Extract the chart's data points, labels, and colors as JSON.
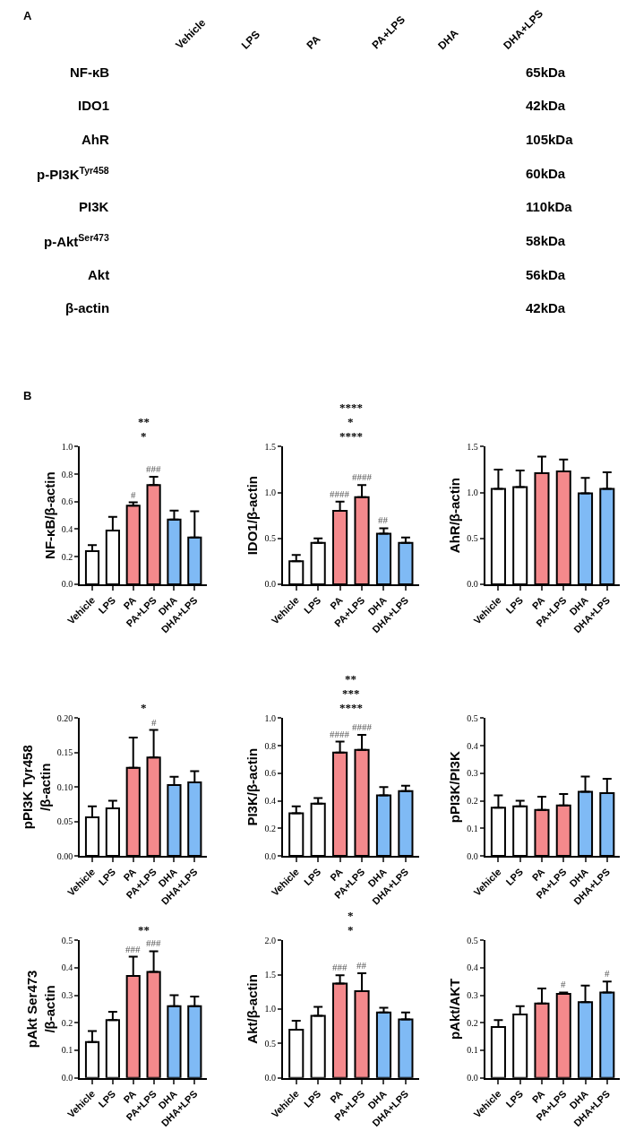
{
  "chart_data": [
    {
      "type": "other",
      "title": "A",
      "categories": [
        "Vehicle",
        "LPS",
        "PA",
        "PA+LPS",
        "DHA",
        "DHA+LPS"
      ],
      "y_categories": [
        "NF-κB",
        "IDO1",
        "AhR",
        "p-PI3K$^{Tyr458}$",
        "PI3K",
        "p-Akt$^{Ser473}$",
        "Akt",
        "β-actin"
      ],
      "y2_categories": [
        "65kDa",
        "42kDa",
        "105kDa",
        "60kDa",
        "110kDa",
        "58kDa",
        "56kDa",
        "42kDa"
      ]
    },
    {
      "type": "bar",
      "title": "B",
      "ylabel": "NF-κB/β-actin",
      "categories": [
        "Vehicle",
        "LPS",
        "PA",
        "PA+LPS",
        "DHA",
        "DHA+LPS"
      ],
      "colors": [
        "#ffffff",
        "#ffffff",
        "#f4898c",
        "#f4898c",
        "#7fbaf5",
        "#7fbaf5"
      ],
      "values": [
        0.24,
        0.39,
        0.57,
        0.72,
        0.47,
        0.34
      ],
      "errors": [
        [
          0.24,
          0.285
        ],
        [
          0.39,
          0.49
        ],
        [
          0.57,
          0.595
        ],
        [
          0.72,
          0.78
        ],
        [
          0.47,
          0.535
        ],
        [
          0.34,
          0.53
        ]
      ],
      "ylim": [
        0,
        1.0
      ],
      "yticks": [
        {
          "value": 0,
          "label": "0.0"
        },
        0.2,
        0.4,
        0.6,
        0.8,
        {
          "value": 1.0,
          "label": "1.0"
        }
      ],
      "grid": false,
      "annotations": [
        {
          "text": "#",
          "x": "PA",
          "y": 0.595
        },
        {
          "text": "###",
          "x": "PA+LPS",
          "y": 0.78
        },
        "*",
        "**"
      ]
    },
    {
      "type": "bar",
      "ylabel": "IDO1/β-actin",
      "categories": [
        "Vehicle",
        "LPS",
        "PA",
        "PA+LPS",
        "DHA",
        "DHA+LPS"
      ],
      "colors": [
        "#ffffff",
        "#ffffff",
        "#f4898c",
        "#f4898c",
        "#7fbaf5",
        "#7fbaf5"
      ],
      "values": [
        0.25,
        0.45,
        0.8,
        0.95,
        0.55,
        0.45
      ],
      "errors": [
        [
          0.25,
          0.32
        ],
        [
          0.45,
          0.5
        ],
        [
          0.8,
          0.9
        ],
        [
          0.95,
          1.08
        ],
        [
          0.55,
          0.61
        ],
        [
          0.45,
          0.51
        ]
      ],
      "ylim": [
        0,
        1.5
      ],
      "yticks": [
        {
          "value": 0,
          "label": "0.0"
        },
        0.5,
        {
          "value": 1.0,
          "label": "1.0"
        },
        1.5
      ],
      "grid": false,
      "annotations": [
        {
          "text": "####",
          "x": "PA",
          "y": 0.9
        },
        {
          "text": "####",
          "x": "PA+LPS",
          "y": 1.08
        },
        {
          "text": "##",
          "x": "DHA",
          "y": 0.61
        },
        "****",
        "*",
        "****"
      ]
    },
    {
      "type": "bar",
      "ylabel": "AhR/β-actin",
      "categories": [
        "Vehicle",
        "LPS",
        "PA",
        "PA+LPS",
        "DHA",
        "DHA+LPS"
      ],
      "colors": [
        "#ffffff",
        "#ffffff",
        "#f4898c",
        "#f4898c",
        "#7fbaf5",
        "#7fbaf5"
      ],
      "values": [
        1.04,
        1.06,
        1.21,
        1.23,
        0.99,
        1.04
      ],
      "errors": [
        [
          1.04,
          1.25
        ],
        [
          1.06,
          1.24
        ],
        [
          1.21,
          1.39
        ],
        [
          1.23,
          1.36
        ],
        [
          0.99,
          1.16
        ],
        [
          1.04,
          1.22
        ]
      ],
      "ylim": [
        0,
        1.5
      ],
      "yticks": [
        {
          "value": 0,
          "label": "0.0"
        },
        0.5,
        {
          "value": 1.0,
          "label": "1.0"
        },
        1.5
      ],
      "grid": false
    },
    {
      "type": "bar",
      "ylabel": "pPI3K Tyr458\n/β-actin",
      "categories": [
        "Vehicle",
        "LPS",
        "PA",
        "PA+LPS",
        "DHA",
        "DHA+LPS"
      ],
      "colors": [
        "#ffffff",
        "#ffffff",
        "#f4898c",
        "#f4898c",
        "#7fbaf5",
        "#7fbaf5"
      ],
      "values": [
        0.056,
        0.069,
        0.128,
        0.143,
        0.103,
        0.107
      ],
      "errors": [
        [
          0.056,
          0.072
        ],
        [
          0.069,
          0.08
        ],
        [
          0.128,
          0.172
        ],
        [
          0.143,
          0.183
        ],
        [
          0.103,
          0.115
        ],
        [
          0.107,
          0.123
        ]
      ],
      "ylim": [
        0,
        0.2
      ],
      "yticks": [
        {
          "value": 0,
          "label": "0.00"
        },
        0.05,
        {
          "value": 0.1,
          "label": "0.10"
        },
        0.15,
        {
          "value": 0.2,
          "label": "0.20"
        }
      ],
      "grid": false,
      "annotations": [
        {
          "text": "#",
          "x": "PA+LPS",
          "y": 0.183
        },
        "*"
      ]
    },
    {
      "type": "bar",
      "ylabel": "PI3K/β-actin",
      "categories": [
        "Vehicle",
        "LPS",
        "PA",
        "PA+LPS",
        "DHA",
        "DHA+LPS"
      ],
      "colors": [
        "#ffffff",
        "#ffffff",
        "#f4898c",
        "#f4898c",
        "#7fbaf5",
        "#7fbaf5"
      ],
      "values": [
        0.31,
        0.38,
        0.75,
        0.77,
        0.44,
        0.47
      ],
      "errors": [
        [
          0.31,
          0.36
        ],
        [
          0.38,
          0.42
        ],
        [
          0.75,
          0.83
        ],
        [
          0.77,
          0.88
        ],
        [
          0.44,
          0.5
        ],
        [
          0.47,
          0.51
        ]
      ],
      "ylim": [
        0,
        1.0
      ],
      "yticks": [
        {
          "value": 0,
          "label": "0.0"
        },
        0.2,
        0.4,
        0.6,
        0.8,
        {
          "value": 1.0,
          "label": "1.0"
        }
      ],
      "grid": false,
      "annotations": [
        {
          "text": "####",
          "x": "PA",
          "y": 0.83
        },
        {
          "text": "####",
          "x": "PA+LPS",
          "y": 0.88
        },
        "****",
        "***",
        "**"
      ]
    },
    {
      "type": "bar",
      "ylabel": "pPI3K/PI3K",
      "categories": [
        "Vehicle",
        "LPS",
        "PA",
        "PA+LPS",
        "DHA",
        "DHA+LPS"
      ],
      "colors": [
        "#ffffff",
        "#ffffff",
        "#f4898c",
        "#f4898c",
        "#7fbaf5",
        "#7fbaf5"
      ],
      "values": [
        0.175,
        0.18,
        0.167,
        0.183,
        0.233,
        0.228
      ],
      "errors": [
        [
          0.175,
          0.22
        ],
        [
          0.18,
          0.2
        ],
        [
          0.167,
          0.215
        ],
        [
          0.183,
          0.225
        ],
        [
          0.233,
          0.288
        ],
        [
          0.228,
          0.28
        ]
      ],
      "ylim": [
        0,
        0.5
      ],
      "yticks": [
        {
          "value": 0,
          "label": "0.0"
        },
        0.1,
        0.2,
        0.3,
        0.4,
        0.5
      ],
      "grid": false
    },
    {
      "type": "bar",
      "ylabel": "pAkt Ser473\n/β-actin",
      "categories": [
        "Vehicle",
        "LPS",
        "PA",
        "PA+LPS",
        "DHA",
        "DHA+LPS"
      ],
      "colors": [
        "#ffffff",
        "#ffffff",
        "#f4898c",
        "#f4898c",
        "#7fbaf5",
        "#7fbaf5"
      ],
      "values": [
        0.13,
        0.21,
        0.37,
        0.385,
        0.26,
        0.26
      ],
      "errors": [
        [
          0.13,
          0.17
        ],
        [
          0.21,
          0.24
        ],
        [
          0.37,
          0.44
        ],
        [
          0.385,
          0.46
        ],
        [
          0.26,
          0.3
        ],
        [
          0.26,
          0.295
        ]
      ],
      "ylim": [
        0,
        0.5
      ],
      "yticks": [
        {
          "value": 0,
          "label": "0.0"
        },
        0.1,
        0.2,
        0.3,
        0.4,
        0.5
      ],
      "grid": false,
      "annotations": [
        {
          "text": "###",
          "x": "PA",
          "y": 0.44
        },
        {
          "text": "###",
          "x": "PA+LPS",
          "y": 0.46
        },
        "**"
      ]
    },
    {
      "type": "bar",
      "ylabel": "Akt/β-actin",
      "categories": [
        "Vehicle",
        "LPS",
        "PA",
        "PA+LPS",
        "DHA",
        "DHA+LPS"
      ],
      "colors": [
        "#ffffff",
        "#ffffff",
        "#f4898c",
        "#f4898c",
        "#7fbaf5",
        "#7fbaf5"
      ],
      "values": [
        0.7,
        0.9,
        1.37,
        1.26,
        0.95,
        0.85
      ],
      "errors": [
        [
          0.7,
          0.83
        ],
        [
          0.9,
          1.03
        ],
        [
          1.37,
          1.49
        ],
        [
          1.26,
          1.52
        ],
        [
          0.95,
          1.02
        ],
        [
          0.85,
          0.95
        ]
      ],
      "ylim": [
        0,
        2.0
      ],
      "yticks": [
        {
          "value": 0,
          "label": "0.0"
        },
        0.5,
        {
          "value": 1.0,
          "label": "1.0"
        },
        1.5,
        {
          "value": 2.0,
          "label": "2.0"
        }
      ],
      "grid": false,
      "annotations": [
        {
          "text": "###",
          "x": "PA",
          "y": 1.49
        },
        {
          "text": "##",
          "x": "PA+LPS",
          "y": 1.52
        },
        "*",
        "*"
      ]
    },
    {
      "type": "bar",
      "ylabel": "pAkt/AKT",
      "categories": [
        "Vehicle",
        "LPS",
        "PA",
        "PA+LPS",
        "DHA",
        "DHA+LPS"
      ],
      "colors": [
        "#ffffff",
        "#ffffff",
        "#f4898c",
        "#f4898c",
        "#7fbaf5",
        "#7fbaf5"
      ],
      "values": [
        0.185,
        0.23,
        0.27,
        0.305,
        0.275,
        0.31
      ],
      "errors": [
        [
          0.185,
          0.21
        ],
        [
          0.23,
          0.26
        ],
        [
          0.27,
          0.325
        ],
        [
          0.305,
          0.31
        ],
        [
          0.275,
          0.335
        ],
        [
          0.31,
          0.35
        ]
      ],
      "ylim": [
        0,
        0.5
      ],
      "yticks": [
        {
          "value": 0,
          "label": "0.0"
        },
        0.1,
        0.2,
        0.3,
        0.4,
        0.5
      ],
      "grid": false,
      "annotations": [
        {
          "text": "#",
          "x": "PA+LPS",
          "y": 0.31
        },
        {
          "text": "#",
          "x": "DHA+LPS",
          "y": 0.35
        }
      ]
    }
  ]
}
